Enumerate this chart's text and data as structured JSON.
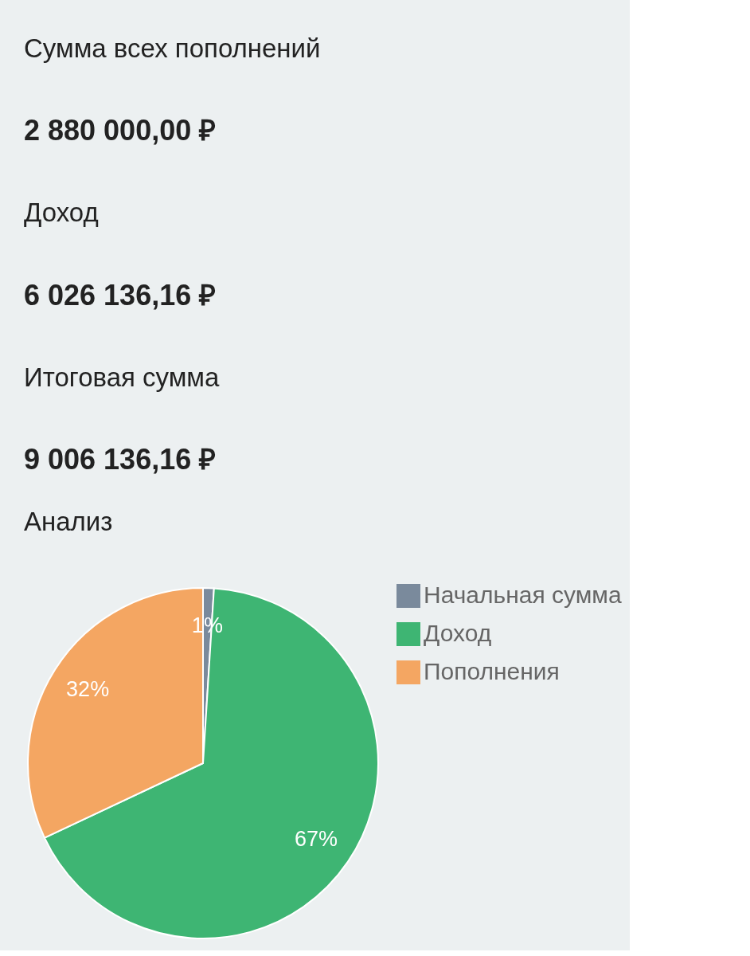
{
  "chart_data": [
    {
      "type": "other",
      "annotations": [
        "Сумма всех пополнений",
        "2 880 000,00 ₽",
        "Доход",
        "6 026 136,16 ₽",
        "Итоговая сумма",
        "9 006 136,16 ₽"
      ]
    },
    {
      "type": "pie",
      "title": "Анализ",
      "categories": [
        "Начальная сумма",
        "Доход",
        "Пополнения"
      ],
      "values": [
        1,
        67,
        32
      ],
      "colors": [
        "#7a8a9c",
        "#3eb573",
        "#f4a662"
      ],
      "value_labels": [
        "1%",
        "67%",
        "32%"
      ],
      "legend": "right"
    }
  ]
}
